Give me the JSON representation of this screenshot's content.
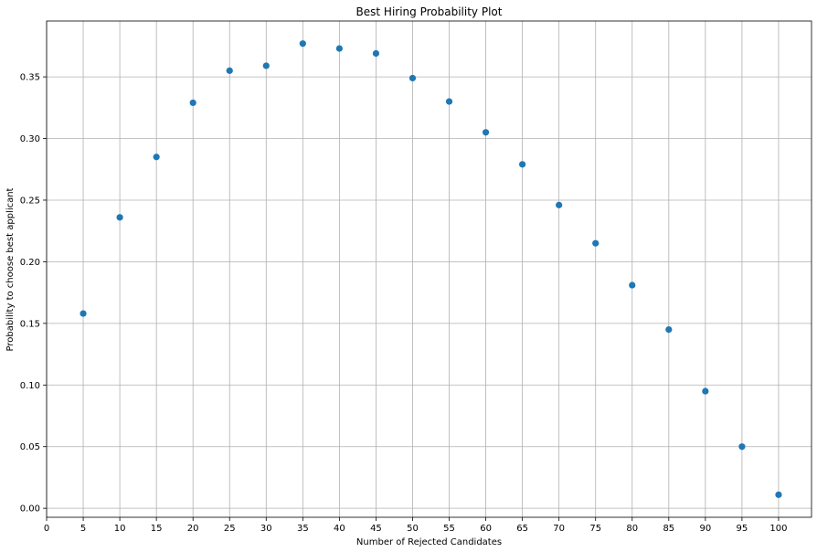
{
  "chart_data": {
    "type": "scatter",
    "title": "Best Hiring Probability Plot",
    "xlabel": "Number of Rejected Candidates",
    "ylabel": "Probability to choose best applicant",
    "x": [
      5,
      10,
      15,
      20,
      25,
      30,
      35,
      40,
      45,
      50,
      55,
      60,
      65,
      70,
      75,
      80,
      85,
      90,
      95,
      100
    ],
    "y": [
      0.158,
      0.236,
      0.285,
      0.329,
      0.355,
      0.359,
      0.377,
      0.373,
      0.369,
      0.349,
      0.33,
      0.305,
      0.279,
      0.246,
      0.215,
      0.181,
      0.145,
      0.095,
      0.05,
      0.011
    ],
    "xlim": [
      0,
      104.5
    ],
    "ylim": [
      -0.0073,
      0.3953
    ],
    "xticks": [
      0,
      5,
      10,
      15,
      20,
      25,
      30,
      35,
      40,
      45,
      50,
      55,
      60,
      65,
      70,
      75,
      80,
      85,
      90,
      95,
      100
    ],
    "xtick_labels": [
      "0",
      "5",
      "10",
      "15",
      "20",
      "25",
      "30",
      "35",
      "40",
      "45",
      "50",
      "55",
      "60",
      "65",
      "70",
      "75",
      "80",
      "85",
      "90",
      "95",
      "100"
    ],
    "yticks": [
      0.0,
      0.05,
      0.1,
      0.15,
      0.2,
      0.25,
      0.3,
      0.35
    ],
    "ytick_labels": [
      "0.00",
      "0.05",
      "0.10",
      "0.15",
      "0.20",
      "0.25",
      "0.30",
      "0.35"
    ],
    "grid": true,
    "marker_color": "#1f77b4",
    "grid_color": "#b0b0b0"
  }
}
